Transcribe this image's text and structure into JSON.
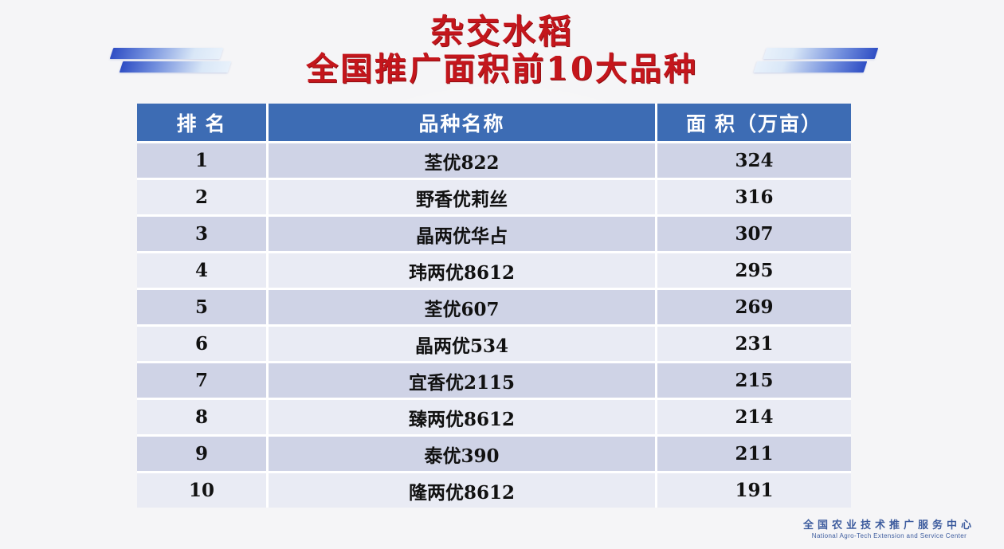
{
  "title": {
    "line1": "杂交水稻",
    "line2": "全国推广面积前10大品种"
  },
  "table": {
    "headers": {
      "rank": "排 名",
      "variety": "品种名称",
      "area": "面 积（万亩）"
    },
    "rows": [
      {
        "rank": "1",
        "variety": "荃优822",
        "area": "324"
      },
      {
        "rank": "2",
        "variety": "野香优莉丝",
        "area": "316"
      },
      {
        "rank": "3",
        "variety": "晶两优华占",
        "area": "307"
      },
      {
        "rank": "4",
        "variety": "玮两优8612",
        "area": "295"
      },
      {
        "rank": "5",
        "variety": "荃优607",
        "area": "269"
      },
      {
        "rank": "6",
        "variety": "晶两优534",
        "area": "231"
      },
      {
        "rank": "7",
        "variety": "宜香优2115",
        "area": "215"
      },
      {
        "rank": "8",
        "variety": "臻两优8612",
        "area": "214"
      },
      {
        "rank": "9",
        "variety": "泰优390",
        "area": "211"
      },
      {
        "rank": "10",
        "variety": "隆两优8612",
        "area": "191"
      }
    ]
  },
  "footer": {
    "org_cn": "全国农业技术推广服务中心",
    "org_en": "National Agro-Tech Extension and Service Center"
  },
  "colors": {
    "title_red": "#c4161c",
    "header_blue": "#3d6cb4",
    "row_odd": "#cfd3e6",
    "row_even": "#e9ebf4",
    "stripe_blue": "#2f4ec4",
    "footer_blue": "#3d5c9e",
    "background": "#f5f5f7"
  }
}
